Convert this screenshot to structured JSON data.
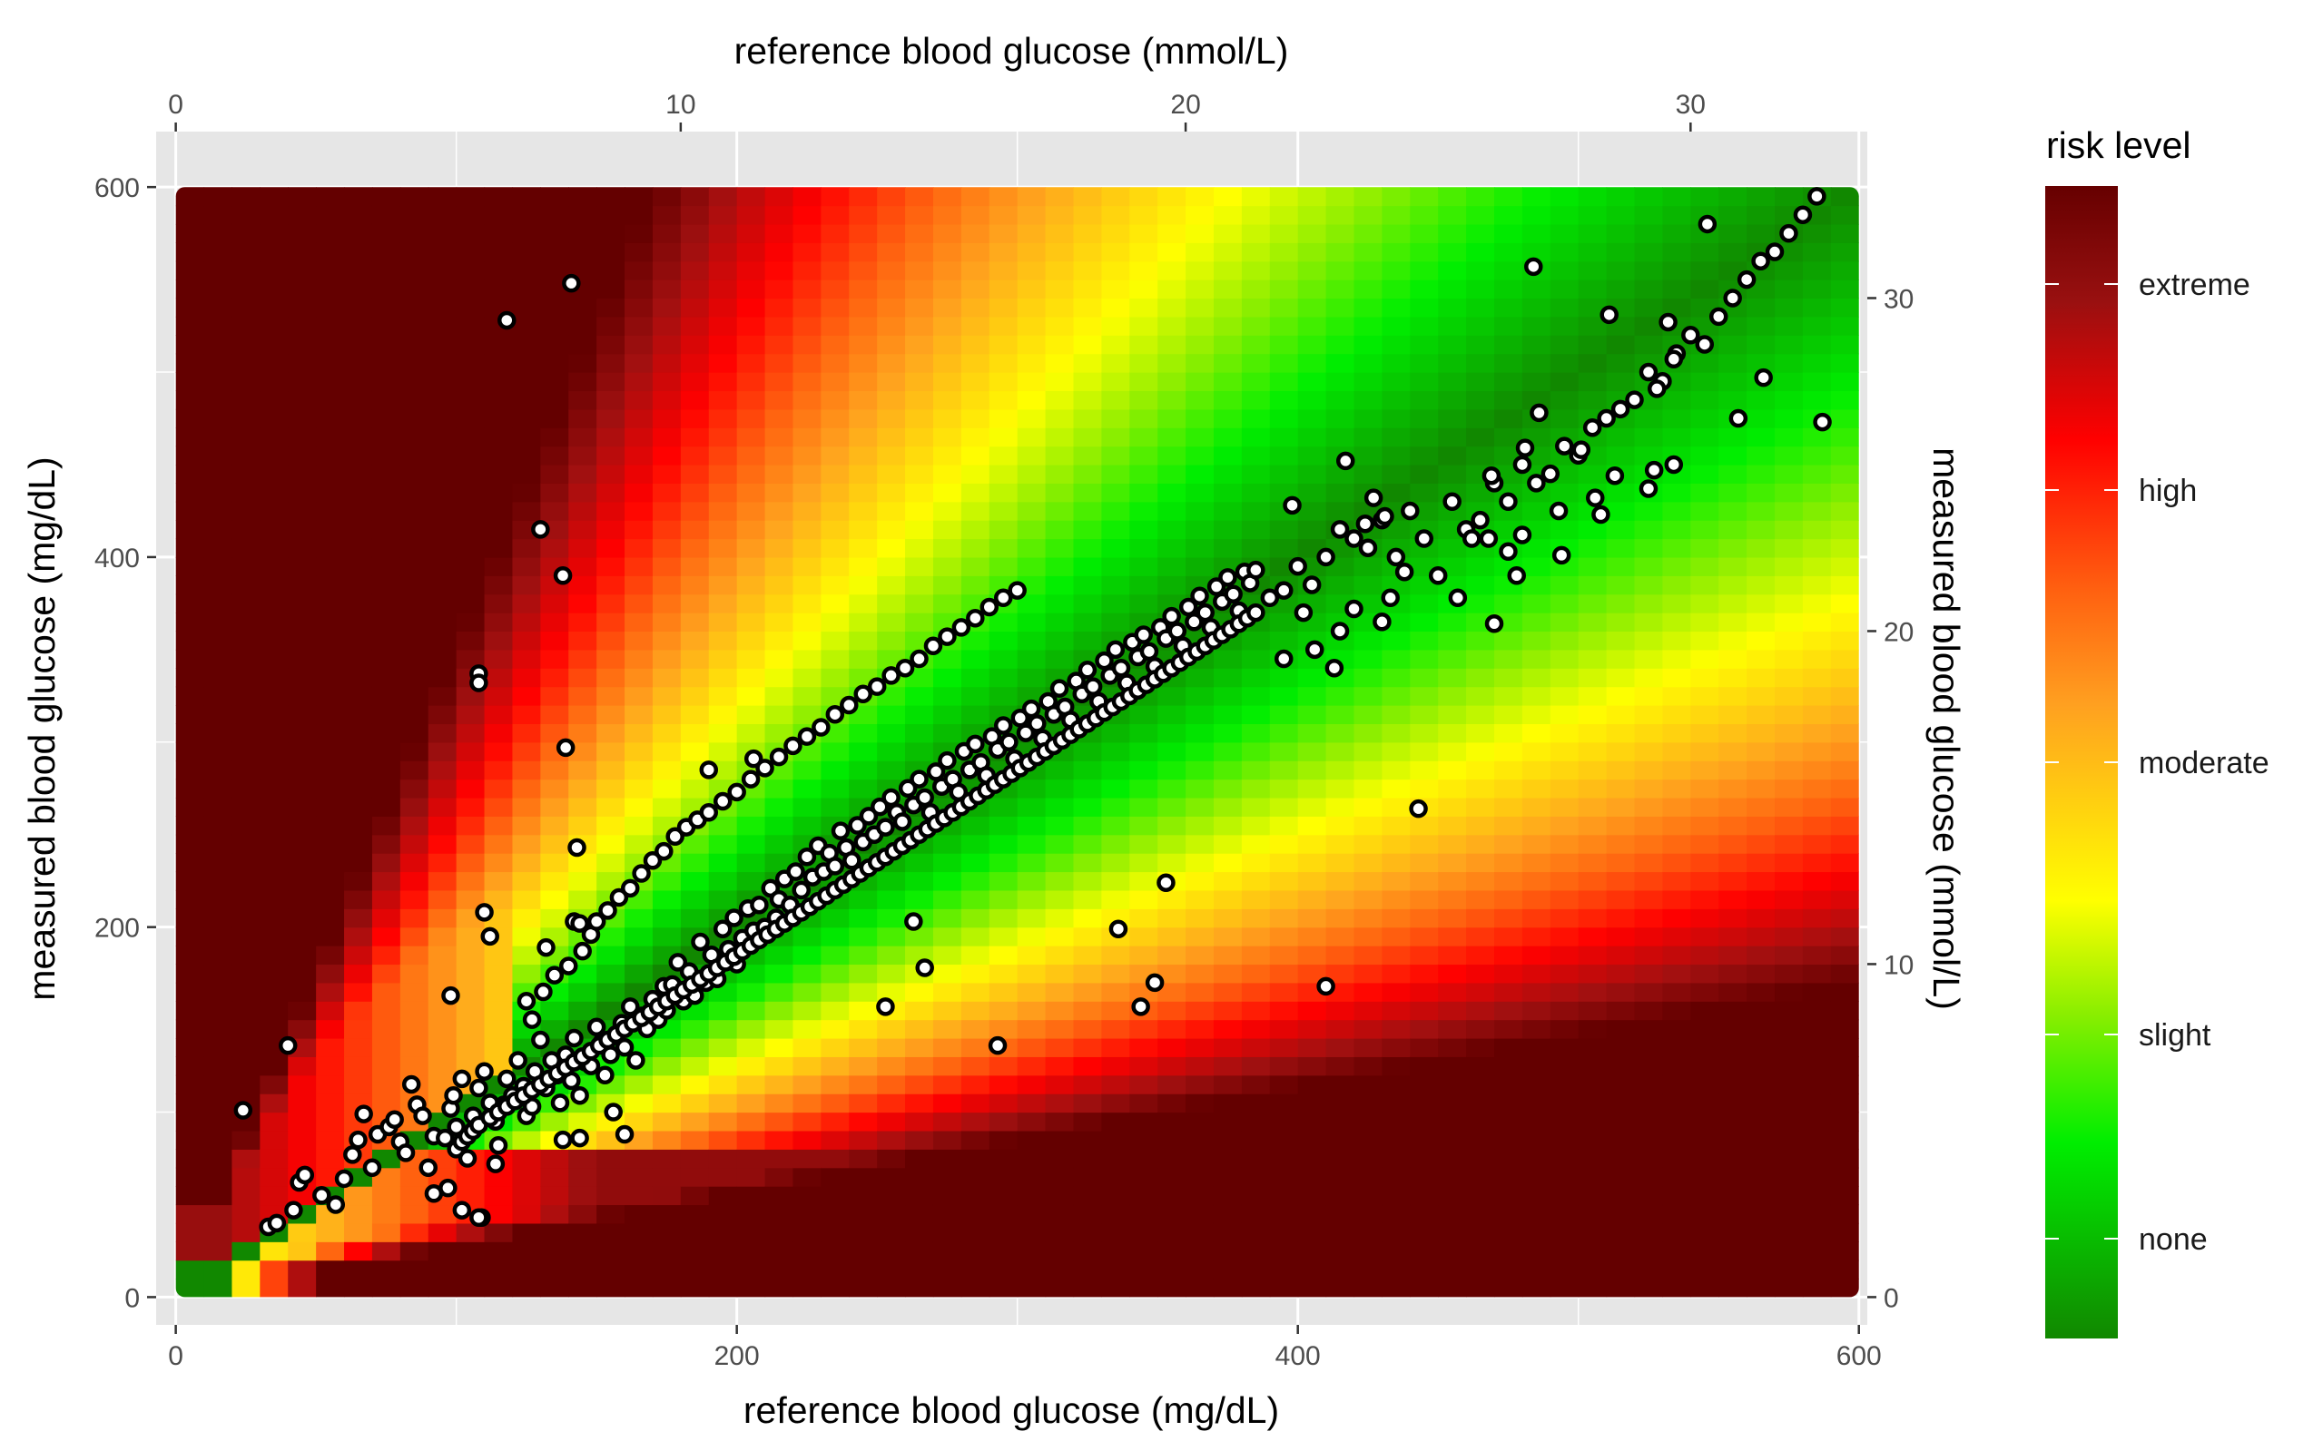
{
  "chart_data": {
    "type": "scatter",
    "background": "risk-level heatmap",
    "x_label_bottom": "reference blood glucose (mg/dL)",
    "x_label_top": "reference blood glucose (mmol/L)",
    "y_label_left": "measured blood glucose (mg/dL)",
    "y_label_right": "measured blood glucose (mmol/L)",
    "xlim": [
      -7,
      603
    ],
    "ylim": [
      -15,
      630
    ],
    "x_ticks_mgdl": [
      "0",
      "200",
      "400",
      "600"
    ],
    "y_ticks_mgdl": [
      "0",
      "200",
      "400",
      "600"
    ],
    "x_ticks_mmol": [
      "0",
      "10",
      "20",
      "30"
    ],
    "y_ticks_mmol": [
      "0",
      "10",
      "20",
      "30"
    ],
    "mgdl_per_mmol": 18.0,
    "heatmap_extent": [
      0,
      600
    ],
    "legend": {
      "title": "risk level",
      "labels": [
        "extreme",
        "high",
        "moderate",
        "slight",
        "none"
      ],
      "colors": [
        "#006600",
        "#00ee00",
        "#ffff00",
        "#ff8000",
        "#ff0000",
        "#660000"
      ]
    },
    "colors": {
      "panel": "#e6e6e6",
      "grid": "#ffffff",
      "point_fill": "#ffffff",
      "point_stroke": "#000000"
    },
    "points": [
      [
        24,
        101
      ],
      [
        40,
        136
      ],
      [
        33,
        38
      ],
      [
        36,
        40
      ],
      [
        42,
        47
      ],
      [
        44,
        62
      ],
      [
        46,
        66
      ],
      [
        52,
        55
      ],
      [
        57,
        50
      ],
      [
        60,
        64
      ],
      [
        63,
        77
      ],
      [
        65,
        85
      ],
      [
        67,
        99
      ],
      [
        70,
        70
      ],
      [
        72,
        88
      ],
      [
        76,
        92
      ],
      [
        78,
        96
      ],
      [
        80,
        84
      ],
      [
        82,
        78
      ],
      [
        84,
        115
      ],
      [
        86,
        104
      ],
      [
        88,
        98
      ],
      [
        90,
        70
      ],
      [
        92,
        87
      ],
      [
        96,
        86
      ],
      [
        98,
        102
      ],
      [
        99,
        109
      ],
      [
        100,
        92
      ],
      [
        102,
        118
      ],
      [
        104,
        75
      ],
      [
        106,
        98
      ],
      [
        108,
        113
      ],
      [
        109,
        43
      ],
      [
        110,
        122
      ],
      [
        112,
        105
      ],
      [
        114,
        95
      ],
      [
        115,
        82
      ],
      [
        117,
        104
      ],
      [
        118,
        118
      ],
      [
        120,
        109
      ],
      [
        122,
        128
      ],
      [
        124,
        114
      ],
      [
        125,
        98
      ],
      [
        127,
        103
      ],
      [
        128,
        122
      ],
      [
        130,
        139
      ],
      [
        132,
        113
      ],
      [
        134,
        128
      ],
      [
        136,
        120
      ],
      [
        137,
        105
      ],
      [
        139,
        131
      ],
      [
        141,
        117
      ],
      [
        142,
        140
      ],
      [
        144,
        109
      ],
      [
        146,
        127
      ],
      [
        148,
        125
      ],
      [
        150,
        146
      ],
      [
        152,
        138
      ],
      [
        153,
        120
      ],
      [
        155,
        131
      ],
      [
        157,
        142
      ],
      [
        159,
        148
      ],
      [
        160,
        135
      ],
      [
        162,
        157
      ],
      [
        164,
        128
      ],
      [
        166,
        152
      ],
      [
        168,
        145
      ],
      [
        170,
        161
      ],
      [
        172,
        150
      ],
      [
        174,
        168
      ],
      [
        175,
        155
      ],
      [
        177,
        169
      ],
      [
        179,
        181
      ],
      [
        181,
        160
      ],
      [
        183,
        176
      ],
      [
        185,
        163
      ],
      [
        187,
        192
      ],
      [
        189,
        170
      ],
      [
        191,
        185
      ],
      [
        193,
        172
      ],
      [
        195,
        199
      ],
      [
        197,
        188
      ],
      [
        199,
        205
      ],
      [
        200,
        180
      ],
      [
        202,
        194
      ],
      [
        204,
        210
      ],
      [
        206,
        198
      ],
      [
        208,
        212
      ],
      [
        210,
        200
      ],
      [
        212,
        221
      ],
      [
        214,
        205
      ],
      [
        215,
        215
      ],
      [
        217,
        226
      ],
      [
        219,
        212
      ],
      [
        221,
        230
      ],
      [
        223,
        220
      ],
      [
        225,
        238
      ],
      [
        227,
        227
      ],
      [
        229,
        244
      ],
      [
        231,
        230
      ],
      [
        233,
        240
      ],
      [
        235,
        233
      ],
      [
        237,
        252
      ],
      [
        239,
        243
      ],
      [
        241,
        236
      ],
      [
        243,
        255
      ],
      [
        245,
        246
      ],
      [
        247,
        260
      ],
      [
        249,
        250
      ],
      [
        251,
        265
      ],
      [
        253,
        254
      ],
      [
        255,
        270
      ],
      [
        257,
        262
      ],
      [
        259,
        257
      ],
      [
        261,
        275
      ],
      [
        263,
        266
      ],
      [
        265,
        280
      ],
      [
        267,
        270
      ],
      [
        269,
        262
      ],
      [
        271,
        284
      ],
      [
        273,
        276
      ],
      [
        275,
        290
      ],
      [
        277,
        280
      ],
      [
        279,
        273
      ],
      [
        281,
        295
      ],
      [
        283,
        285
      ],
      [
        285,
        299
      ],
      [
        287,
        289
      ],
      [
        289,
        282
      ],
      [
        291,
        303
      ],
      [
        293,
        296
      ],
      [
        295,
        309
      ],
      [
        297,
        300
      ],
      [
        299,
        291
      ],
      [
        301,
        313
      ],
      [
        303,
        305
      ],
      [
        305,
        318
      ],
      [
        307,
        310
      ],
      [
        309,
        302
      ],
      [
        311,
        322
      ],
      [
        313,
        315
      ],
      [
        315,
        329
      ],
      [
        317,
        319
      ],
      [
        319,
        312
      ],
      [
        321,
        333
      ],
      [
        323,
        326
      ],
      [
        325,
        339
      ],
      [
        327,
        330
      ],
      [
        329,
        322
      ],
      [
        331,
        344
      ],
      [
        333,
        336
      ],
      [
        335,
        350
      ],
      [
        337,
        340
      ],
      [
        339,
        332
      ],
      [
        341,
        354
      ],
      [
        343,
        346
      ],
      [
        345,
        358
      ],
      [
        347,
        349
      ],
      [
        349,
        341
      ],
      [
        351,
        362
      ],
      [
        353,
        356
      ],
      [
        355,
        368
      ],
      [
        357,
        360
      ],
      [
        359,
        352
      ],
      [
        361,
        373
      ],
      [
        363,
        365
      ],
      [
        365,
        379
      ],
      [
        367,
        370
      ],
      [
        369,
        362
      ],
      [
        371,
        384
      ],
      [
        373,
        376
      ],
      [
        375,
        389
      ],
      [
        377,
        380
      ],
      [
        379,
        371
      ],
      [
        381,
        392
      ],
      [
        383,
        386
      ],
      [
        385,
        393
      ],
      [
        390,
        378
      ],
      [
        395,
        382
      ],
      [
        400,
        395
      ],
      [
        402,
        370
      ],
      [
        405,
        385
      ],
      [
        410,
        400
      ],
      [
        415,
        415
      ],
      [
        420,
        410
      ],
      [
        425,
        405
      ],
      [
        430,
        420
      ],
      [
        435,
        400
      ],
      [
        440,
        425
      ],
      [
        445,
        410
      ],
      [
        450,
        390
      ],
      [
        455,
        430
      ],
      [
        460,
        415
      ],
      [
        465,
        420
      ],
      [
        470,
        440
      ],
      [
        475,
        430
      ],
      [
        480,
        450
      ],
      [
        485,
        440
      ],
      [
        490,
        445
      ],
      [
        495,
        460
      ],
      [
        500,
        455
      ],
      [
        505,
        470
      ],
      [
        510,
        475
      ],
      [
        515,
        480
      ],
      [
        520,
        485
      ],
      [
        525,
        500
      ],
      [
        530,
        495
      ],
      [
        535,
        510
      ],
      [
        540,
        520
      ],
      [
        545,
        515
      ],
      [
        550,
        530
      ],
      [
        555,
        540
      ],
      [
        560,
        550
      ],
      [
        565,
        560
      ],
      [
        570,
        565
      ],
      [
        575,
        575
      ],
      [
        580,
        585
      ],
      [
        585,
        595
      ],
      [
        125,
        160
      ],
      [
        127,
        150
      ],
      [
        131,
        165
      ],
      [
        135,
        174
      ],
      [
        140,
        179
      ],
      [
        145,
        187
      ],
      [
        148,
        196
      ],
      [
        150,
        203
      ],
      [
        154,
        209
      ],
      [
        158,
        216
      ],
      [
        162,
        221
      ],
      [
        166,
        229
      ],
      [
        170,
        236
      ],
      [
        174,
        241
      ],
      [
        178,
        249
      ],
      [
        182,
        254
      ],
      [
        186,
        258
      ],
      [
        190,
        262
      ],
      [
        195,
        268
      ],
      [
        200,
        273
      ],
      [
        205,
        280
      ],
      [
        210,
        286
      ],
      [
        215,
        292
      ],
      [
        220,
        298
      ],
      [
        225,
        303
      ],
      [
        230,
        308
      ],
      [
        235,
        315
      ],
      [
        240,
        320
      ],
      [
        245,
        326
      ],
      [
        250,
        330
      ],
      [
        255,
        336
      ],
      [
        260,
        340
      ],
      [
        265,
        345
      ],
      [
        270,
        352
      ],
      [
        275,
        357
      ],
      [
        280,
        362
      ],
      [
        285,
        367
      ],
      [
        290,
        373
      ],
      [
        295,
        378
      ],
      [
        300,
        382
      ],
      [
        100,
        80
      ],
      [
        102,
        84
      ],
      [
        104,
        87
      ],
      [
        106,
        90
      ],
      [
        108,
        93
      ],
      [
        112,
        97
      ],
      [
        115,
        100
      ],
      [
        118,
        103
      ],
      [
        121,
        106
      ],
      [
        124,
        109
      ],
      [
        127,
        112
      ],
      [
        130,
        115
      ],
      [
        133,
        118
      ],
      [
        136,
        121
      ],
      [
        139,
        124
      ],
      [
        142,
        127
      ],
      [
        145,
        130
      ],
      [
        148,
        133
      ],
      [
        151,
        136
      ],
      [
        154,
        139
      ],
      [
        157,
        142
      ],
      [
        160,
        145
      ],
      [
        163,
        148
      ],
      [
        166,
        151
      ],
      [
        169,
        154
      ],
      [
        172,
        157
      ],
      [
        175,
        160
      ],
      [
        178,
        163
      ],
      [
        181,
        166
      ],
      [
        184,
        169
      ],
      [
        187,
        172
      ],
      [
        190,
        175
      ],
      [
        193,
        178
      ],
      [
        196,
        181
      ],
      [
        199,
        184
      ],
      [
        202,
        187
      ],
      [
        205,
        190
      ],
      [
        208,
        193
      ],
      [
        211,
        196
      ],
      [
        214,
        199
      ],
      [
        217,
        202
      ],
      [
        220,
        205
      ],
      [
        223,
        208
      ],
      [
        226,
        211
      ],
      [
        229,
        214
      ],
      [
        232,
        217
      ],
      [
        235,
        220
      ],
      [
        238,
        223
      ],
      [
        241,
        226
      ],
      [
        244,
        229
      ],
      [
        247,
        232
      ],
      [
        250,
        235
      ],
      [
        253,
        238
      ],
      [
        256,
        241
      ],
      [
        259,
        244
      ],
      [
        262,
        247
      ],
      [
        265,
        250
      ],
      [
        268,
        253
      ],
      [
        271,
        256
      ],
      [
        274,
        259
      ],
      [
        277,
        262
      ],
      [
        280,
        265
      ],
      [
        283,
        268
      ],
      [
        286,
        271
      ],
      [
        289,
        274
      ],
      [
        292,
        277
      ],
      [
        295,
        280
      ],
      [
        298,
        283
      ],
      [
        301,
        286
      ],
      [
        304,
        289
      ],
      [
        307,
        292
      ],
      [
        310,
        295
      ],
      [
        313,
        298
      ],
      [
        316,
        301
      ],
      [
        319,
        304
      ],
      [
        322,
        307
      ],
      [
        325,
        310
      ],
      [
        328,
        313
      ],
      [
        331,
        316
      ],
      [
        334,
        319
      ],
      [
        337,
        322
      ],
      [
        340,
        325
      ],
      [
        343,
        328
      ],
      [
        346,
        331
      ],
      [
        349,
        334
      ],
      [
        352,
        337
      ],
      [
        355,
        340
      ],
      [
        358,
        343
      ],
      [
        361,
        346
      ],
      [
        364,
        349
      ],
      [
        367,
        352
      ],
      [
        370,
        355
      ],
      [
        373,
        358
      ],
      [
        376,
        361
      ],
      [
        379,
        364
      ],
      [
        382,
        367
      ],
      [
        385,
        370
      ],
      [
        118,
        528
      ],
      [
        141,
        548
      ],
      [
        130,
        415
      ],
      [
        138,
        390
      ],
      [
        108,
        337
      ],
      [
        108,
        332
      ],
      [
        139,
        297
      ],
      [
        143,
        243
      ],
      [
        110,
        208
      ],
      [
        112,
        195
      ],
      [
        142,
        203
      ],
      [
        144,
        202
      ],
      [
        132,
        189
      ],
      [
        98,
        163
      ],
      [
        156,
        100
      ],
      [
        160,
        88
      ],
      [
        138,
        85
      ],
      [
        144,
        86
      ],
      [
        92,
        56
      ],
      [
        97,
        59
      ],
      [
        102,
        47
      ],
      [
        108,
        43
      ],
      [
        114,
        72
      ],
      [
        190,
        285
      ],
      [
        206,
        291
      ],
      [
        253,
        157
      ],
      [
        263,
        203
      ],
      [
        267,
        178
      ],
      [
        293,
        136
      ],
      [
        336,
        199
      ],
      [
        344,
        157
      ],
      [
        349,
        170
      ],
      [
        353,
        224
      ],
      [
        410,
        168
      ],
      [
        443,
        264
      ],
      [
        417,
        452
      ],
      [
        457,
        378
      ],
      [
        470,
        364
      ],
      [
        484,
        557
      ],
      [
        546,
        580
      ],
      [
        557,
        475
      ],
      [
        566,
        497
      ],
      [
        587,
        473
      ],
      [
        511,
        531
      ],
      [
        532,
        527
      ],
      [
        534,
        507
      ],
      [
        528,
        491
      ],
      [
        534,
        450
      ],
      [
        508,
        423
      ],
      [
        494,
        401
      ],
      [
        501,
        458
      ],
      [
        513,
        444
      ],
      [
        525,
        437
      ],
      [
        527,
        447
      ],
      [
        481,
        459
      ],
      [
        486,
        478
      ],
      [
        493,
        425
      ],
      [
        506,
        432
      ],
      [
        480,
        412
      ],
      [
        475,
        403
      ],
      [
        478,
        390
      ],
      [
        469,
        444
      ],
      [
        462,
        410
      ],
      [
        468,
        410
      ],
      [
        438,
        392
      ],
      [
        433,
        378
      ],
      [
        430,
        365
      ],
      [
        420,
        372
      ],
      [
        415,
        360
      ],
      [
        413,
        340
      ],
      [
        406,
        350
      ],
      [
        395,
        345
      ],
      [
        398,
        428
      ],
      [
        431,
        422
      ],
      [
        427,
        432
      ],
      [
        424,
        418
      ]
    ]
  }
}
